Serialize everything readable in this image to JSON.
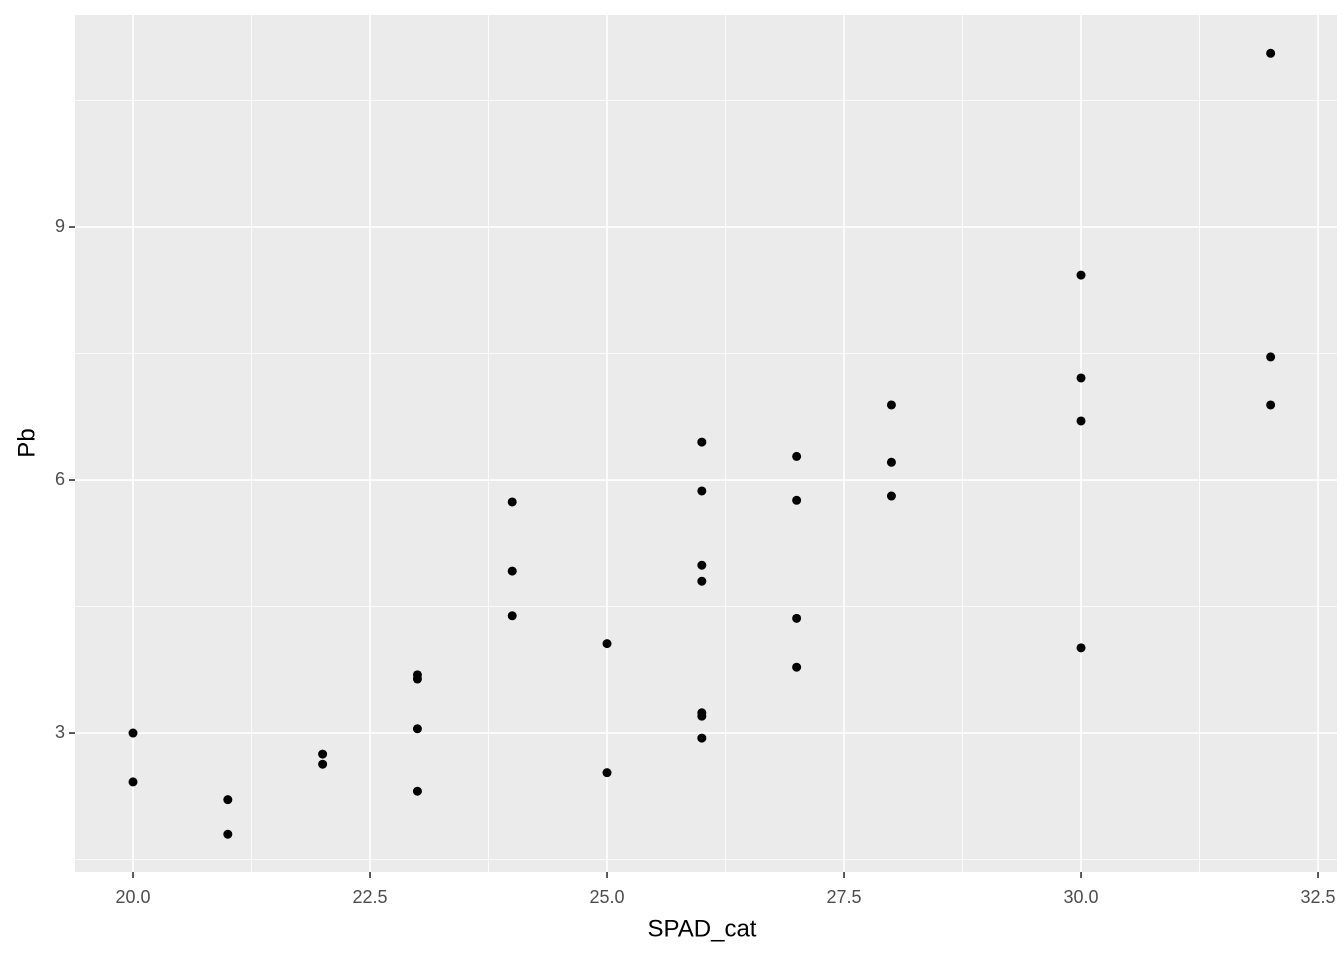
{
  "chart_data": {
    "type": "scatter",
    "x_label": "SPAD_cat",
    "y_label": "Pb",
    "x": [
      20,
      20,
      21,
      21,
      22,
      22,
      23,
      23,
      23,
      23,
      24,
      24,
      24,
      25,
      25,
      26,
      26,
      26,
      26,
      26,
      26,
      26,
      27,
      27,
      27,
      27,
      28,
      28,
      28,
      30,
      30,
      30,
      30,
      32,
      32,
      32
    ],
    "values": [
      3.0,
      2.42,
      2.21,
      1.8,
      2.75,
      2.63,
      3.69,
      3.64,
      3.05,
      2.31,
      5.74,
      4.92,
      4.39,
      4.06,
      2.53,
      6.45,
      5.87,
      4.99,
      4.8,
      3.24,
      3.2,
      2.94,
      6.28,
      5.76,
      4.36,
      3.78,
      6.89,
      6.21,
      5.81,
      8.43,
      7.21,
      6.7,
      4.01,
      11.06,
      7.46,
      6.89
    ],
    "color": "#000000",
    "xlim": [
      19.388,
      32.7
    ],
    "ylim": [
      1.352,
      11.514
    ],
    "xticks": [
      {
        "value": 20,
        "label": "20.0"
      },
      22.5,
      {
        "value": 25,
        "label": "25.0"
      },
      27.5,
      {
        "value": 30,
        "label": "30.0"
      },
      32.5
    ],
    "yticks": [
      3,
      6,
      9
    ],
    "grid": true,
    "minor_grid": true,
    "panel_color": "#ebebeb"
  }
}
